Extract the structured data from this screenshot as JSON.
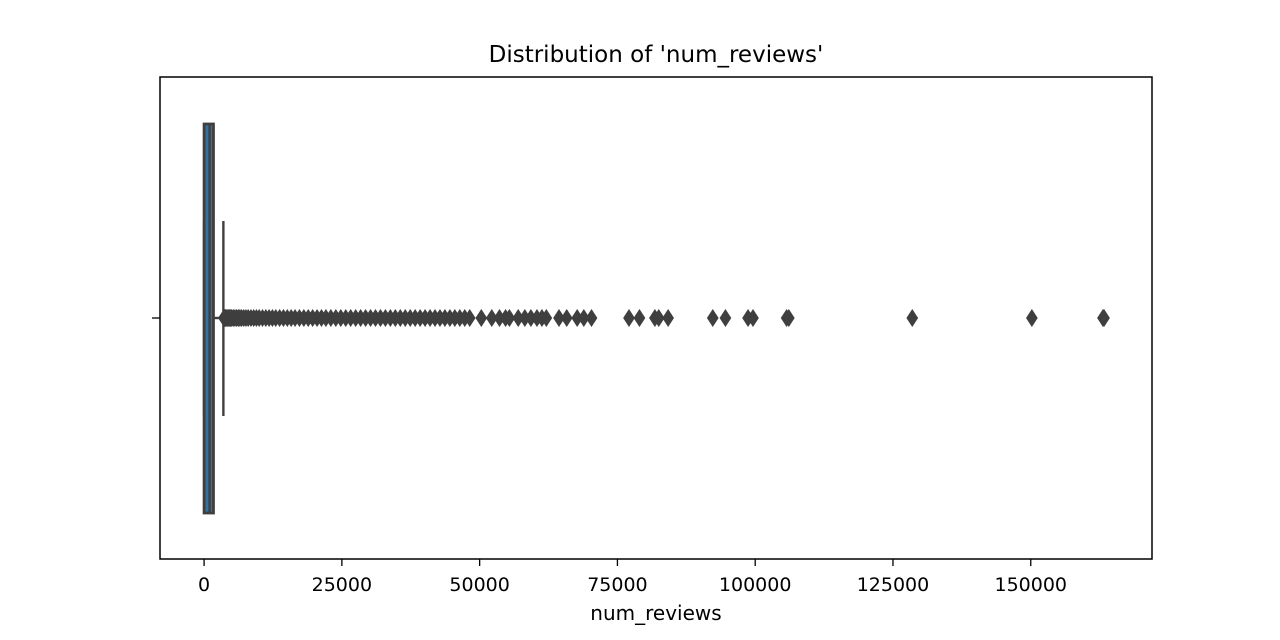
{
  "chart_data": {
    "type": "box",
    "title": "Distribution of 'num_reviews'",
    "xlabel": "num_reviews",
    "ylabel": "",
    "xlim": [
      -8000,
      172000
    ],
    "xticks": [
      0,
      25000,
      50000,
      75000,
      100000,
      125000,
      150000
    ],
    "xtick_labels": [
      "0",
      "25000",
      "50000",
      "75000",
      "100000",
      "125000",
      "150000"
    ],
    "grid": false,
    "orientation": "horizontal",
    "box": {
      "whisker_low": 0,
      "q1": 0,
      "median": 1000,
      "q3": 1700,
      "whisker_high": 3500
    },
    "outliers": [
      3600,
      3700,
      3800,
      3900,
      4000,
      4200,
      4400,
      4600,
      4800,
      5000,
      5300,
      5600,
      5900,
      6200,
      6500,
      6800,
      7200,
      7600,
      8000,
      8500,
      9000,
      9500,
      10000,
      10600,
      11200,
      11800,
      12400,
      13000,
      13700,
      14400,
      15100,
      15800,
      16500,
      17300,
      18100,
      18900,
      19700,
      20500,
      21300,
      22100,
      23000,
      23900,
      24800,
      25700,
      26600,
      27500,
      28400,
      29300,
      30200,
      31100,
      32000,
      32900,
      33800,
      34700,
      35600,
      36500,
      37400,
      38300,
      39200,
      40100,
      41000,
      41900,
      42800,
      43700,
      44600,
      45500,
      46400,
      47300,
      48200,
      50300,
      52200,
      53600,
      54700,
      55400,
      57000,
      58200,
      59300,
      60400,
      61300,
      62100,
      64400,
      65800,
      67700,
      68900,
      70300,
      77100,
      79000,
      81800,
      82500,
      84200,
      92300,
      94600,
      98700,
      99600,
      105700,
      106100,
      128500,
      150200,
      163100,
      163300
    ],
    "colors": {
      "box_fill": "#3274a1",
      "line": "#3f3f3f",
      "outlier": "#3f3f3f"
    }
  }
}
